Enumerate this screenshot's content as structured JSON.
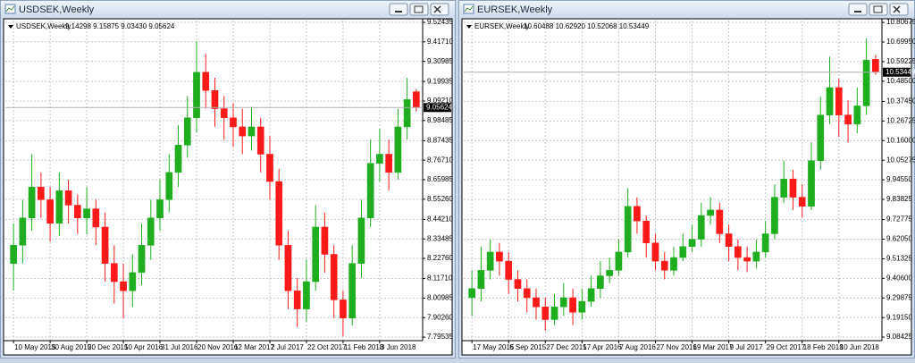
{
  "chart_data": [
    {
      "type": "candlestick",
      "title": "USDSEK,Weekly",
      "ohlc_label": "9.14298 9.15875 9.03430 9.05624",
      "categories": [
        "10 May 2015",
        null,
        null,
        null,
        "30 Aug 2015",
        null,
        null,
        null,
        "20 Dec 2015",
        null,
        null,
        null,
        "10 Apr 2016",
        null,
        null,
        null,
        "31 Jul 2016",
        null,
        null,
        null,
        "20 Nov 2016",
        null,
        null,
        null,
        "12 Mar 2017",
        null,
        null,
        null,
        "2 Jul 2017",
        null,
        null,
        null,
        "22 Oct 2017",
        null,
        null,
        null,
        "11 Feb 2018",
        null,
        null,
        null,
        "3 Jun 2018",
        null,
        null,
        null,
        null
      ],
      "open": [
        8.2,
        8.3,
        8.45,
        8.62,
        8.55,
        8.42,
        8.6,
        8.52,
        8.45,
        8.5,
        8.4,
        8.2,
        8.1,
        8.05,
        8.15,
        8.3,
        8.45,
        8.55,
        8.7,
        8.85,
        9.0,
        9.25,
        9.15,
        9.05,
        9.0,
        8.95,
        8.9,
        8.95,
        8.8,
        8.65,
        8.3,
        8.05,
        7.95,
        8.1,
        8.4,
        8.25,
        8.0,
        7.9,
        8.2,
        8.45,
        8.75,
        8.8,
        8.7,
        8.95,
        9.14298
      ],
      "high": [
        8.42,
        8.55,
        8.8,
        8.7,
        8.62,
        8.7,
        8.66,
        8.58,
        8.62,
        8.55,
        8.48,
        8.3,
        8.2,
        8.25,
        8.42,
        8.55,
        8.66,
        8.8,
        8.96,
        9.12,
        9.42,
        9.35,
        9.22,
        9.12,
        9.08,
        9.05,
        9.06,
        9.0,
        8.9,
        8.72,
        8.38,
        8.12,
        8.22,
        8.52,
        8.48,
        8.3,
        8.05,
        8.3,
        8.55,
        8.88,
        8.94,
        8.88,
        9.05,
        9.22,
        9.15875
      ],
      "low": [
        8.05,
        8.2,
        8.38,
        8.45,
        8.32,
        8.35,
        8.42,
        8.36,
        8.36,
        8.3,
        8.1,
        7.98,
        7.9,
        7.96,
        8.08,
        8.22,
        8.38,
        8.48,
        8.62,
        8.78,
        8.92,
        9.05,
        8.95,
        8.88,
        8.84,
        8.8,
        8.82,
        8.7,
        8.55,
        8.22,
        7.95,
        7.85,
        7.88,
        8.05,
        8.15,
        7.9,
        7.8,
        7.86,
        8.12,
        8.4,
        8.65,
        8.6,
        8.66,
        8.88,
        9.0343
      ],
      "close": [
        8.3,
        8.45,
        8.62,
        8.55,
        8.42,
        8.6,
        8.52,
        8.45,
        8.5,
        8.4,
        8.2,
        8.1,
        8.05,
        8.15,
        8.3,
        8.45,
        8.55,
        8.7,
        8.85,
        9.0,
        9.25,
        9.15,
        9.05,
        9.0,
        8.95,
        8.9,
        8.95,
        8.8,
        8.65,
        8.3,
        8.05,
        7.95,
        8.1,
        8.4,
        8.25,
        8.0,
        7.9,
        8.2,
        8.45,
        8.75,
        8.8,
        8.7,
        8.95,
        9.1,
        9.05624
      ],
      "up_color": "#1fae1f",
      "down_color": "#ff1a1a",
      "current_price": 9.05624,
      "ylim": [
        7.776,
        9.534
      ],
      "yticks": [
        7.79535,
        {
          "value": 7.9026,
          "label": "7.90260"
        },
        8.00985,
        {
          "value": 8.1171,
          "label": "8.11710"
        },
        {
          "value": 8.2276,
          "label": "8.22760"
        },
        8.33485,
        {
          "value": 8.4421,
          "label": "8.44210"
        },
        {
          "value": 8.5526,
          "label": "8.55260"
        },
        8.65985,
        {
          "value": 8.7671,
          "label": "8.76710"
        },
        8.87435,
        8.98485,
        {
          "value": 9.0921,
          "label": "9.09210"
        },
        9.19935,
        9.30985,
        {
          "value": 9.4171,
          "label": "9.41710"
        },
        9.52435
      ],
      "grid": true
    },
    {
      "type": "candlestick",
      "title": "EURSEK,Weekly",
      "ohlc_label": "10.60488 10.62920 10.52068 10.53449",
      "categories": [
        "17 May 2015",
        null,
        null,
        null,
        "6 Sep 2015",
        null,
        null,
        null,
        "27 Dec 2015",
        null,
        null,
        null,
        "17 Apr 2016",
        null,
        null,
        null,
        "7 Aug 2016",
        null,
        null,
        null,
        "27 Nov 2016",
        null,
        null,
        null,
        "19 Mar 2017",
        null,
        null,
        null,
        "9 Jul 2017",
        null,
        null,
        null,
        "29 Oct 2017",
        null,
        null,
        null,
        "18 Feb 2018",
        null,
        null,
        null,
        "10 Jun 2018",
        null,
        null,
        null,
        null
      ],
      "open": [
        9.3,
        9.35,
        9.45,
        9.55,
        9.5,
        9.4,
        9.35,
        9.3,
        9.25,
        9.18,
        9.25,
        9.3,
        9.22,
        9.28,
        9.35,
        9.42,
        9.45,
        9.55,
        9.8,
        9.72,
        9.6,
        9.5,
        9.45,
        9.52,
        9.58,
        9.62,
        9.75,
        9.78,
        9.65,
        9.58,
        9.52,
        9.5,
        9.55,
        9.65,
        9.85,
        9.95,
        9.85,
        9.8,
        10.05,
        10.3,
        10.45,
        10.3,
        10.25,
        10.35,
        10.60488
      ],
      "high": [
        9.45,
        9.58,
        9.62,
        9.6,
        9.55,
        9.45,
        9.4,
        9.35,
        9.3,
        9.32,
        9.38,
        9.35,
        9.35,
        9.42,
        9.5,
        9.52,
        9.62,
        9.9,
        9.85,
        9.75,
        9.65,
        9.55,
        9.58,
        9.65,
        9.7,
        9.82,
        9.85,
        9.82,
        9.7,
        9.62,
        9.58,
        9.62,
        9.72,
        9.92,
        10.05,
        10.0,
        9.92,
        10.15,
        10.4,
        10.62,
        10.5,
        10.38,
        10.45,
        10.72,
        10.6292
      ],
      "low": [
        9.2,
        9.28,
        9.4,
        9.42,
        9.32,
        9.28,
        9.22,
        9.18,
        9.12,
        9.15,
        9.2,
        9.15,
        9.18,
        9.25,
        9.3,
        9.38,
        9.42,
        9.52,
        9.65,
        9.52,
        9.45,
        9.4,
        9.42,
        9.5,
        9.55,
        9.58,
        9.7,
        9.6,
        9.5,
        9.45,
        9.44,
        9.46,
        9.52,
        9.62,
        9.82,
        9.78,
        9.74,
        9.78,
        10.0,
        10.25,
        10.18,
        10.15,
        10.2,
        10.3,
        10.52068
      ],
      "close": [
        9.35,
        9.45,
        9.55,
        9.5,
        9.4,
        9.35,
        9.3,
        9.25,
        9.18,
        9.25,
        9.3,
        9.22,
        9.28,
        9.35,
        9.42,
        9.45,
        9.55,
        9.8,
        9.72,
        9.6,
        9.5,
        9.45,
        9.52,
        9.58,
        9.62,
        9.75,
        9.78,
        9.65,
        9.58,
        9.52,
        9.5,
        9.55,
        9.65,
        9.85,
        9.95,
        9.85,
        9.8,
        10.05,
        10.3,
        10.45,
        10.3,
        10.25,
        10.35,
        10.6,
        10.53449
      ],
      "up_color": "#1fae1f",
      "down_color": "#ff1a1a",
      "current_price": 10.53449,
      "ylim": [
        9.065,
        10.817
      ],
      "yticks": [
        9.08425,
        {
          "value": 9.1915,
          "label": "9.19150"
        },
        9.29875,
        {
          "value": 9.406,
          "label": "9.40600"
        },
        9.51325,
        {
          "value": 9.6205,
          "label": "9.62050"
        },
        9.72775,
        9.83825,
        {
          "value": 9.9455,
          "label": "9.94550"
        },
        10.05275,
        {
          "value": 10.16,
          "label": "10.16000"
        },
        10.26725,
        {
          "value": 10.3745,
          "label": "10.37450"
        },
        {
          "value": 10.485,
          "label": "10.48500"
        },
        10.59225,
        {
          "value": 10.6995,
          "label": "10.69950"
        },
        10.80675
      ],
      "grid": true
    }
  ]
}
